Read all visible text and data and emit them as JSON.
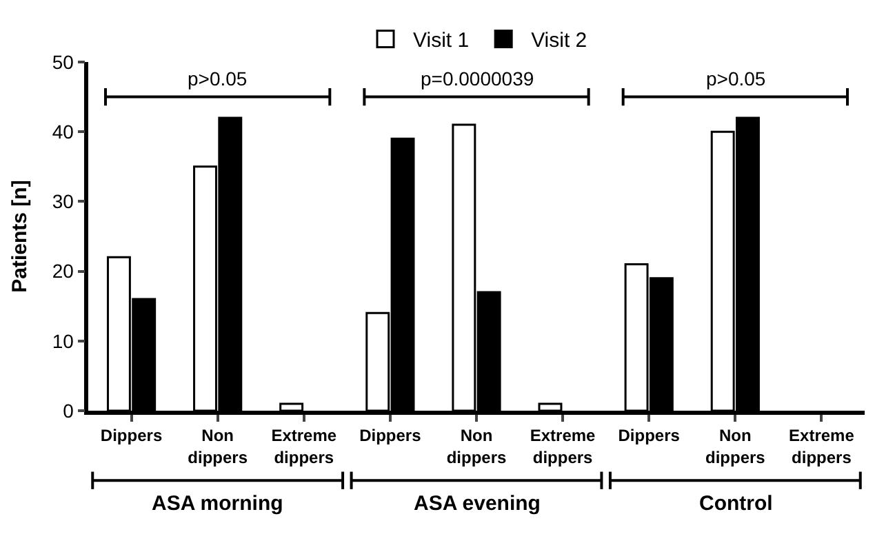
{
  "chart_data": {
    "type": "bar",
    "ylabel": "Patients [n]",
    "categories": [
      "Dippers",
      "Non\ndippers",
      "Extreme\ndippers",
      "Dippers",
      "Non\ndippers",
      "Extreme\ndippers",
      "Dippers",
      "Non\ndippers",
      "Extreme\ndippers"
    ],
    "series": [
      {
        "name": "Visit 1",
        "color": "#ffffff",
        "values": [
          22,
          35,
          1,
          14,
          41,
          1,
          21,
          40,
          0
        ]
      },
      {
        "name": "Visit 2",
        "color": "#000000",
        "values": [
          16,
          42,
          0,
          39,
          17,
          0,
          19,
          42,
          0
        ]
      }
    ],
    "ylim": [
      0,
      50
    ],
    "yticks": [
      0,
      10,
      20,
      30,
      40,
      50
    ],
    "legend": "top",
    "annotations": [
      "p>0.05",
      "p=0.0000039",
      "p>0.05",
      "ASA morning",
      "ASA evening",
      "Control"
    ]
  }
}
